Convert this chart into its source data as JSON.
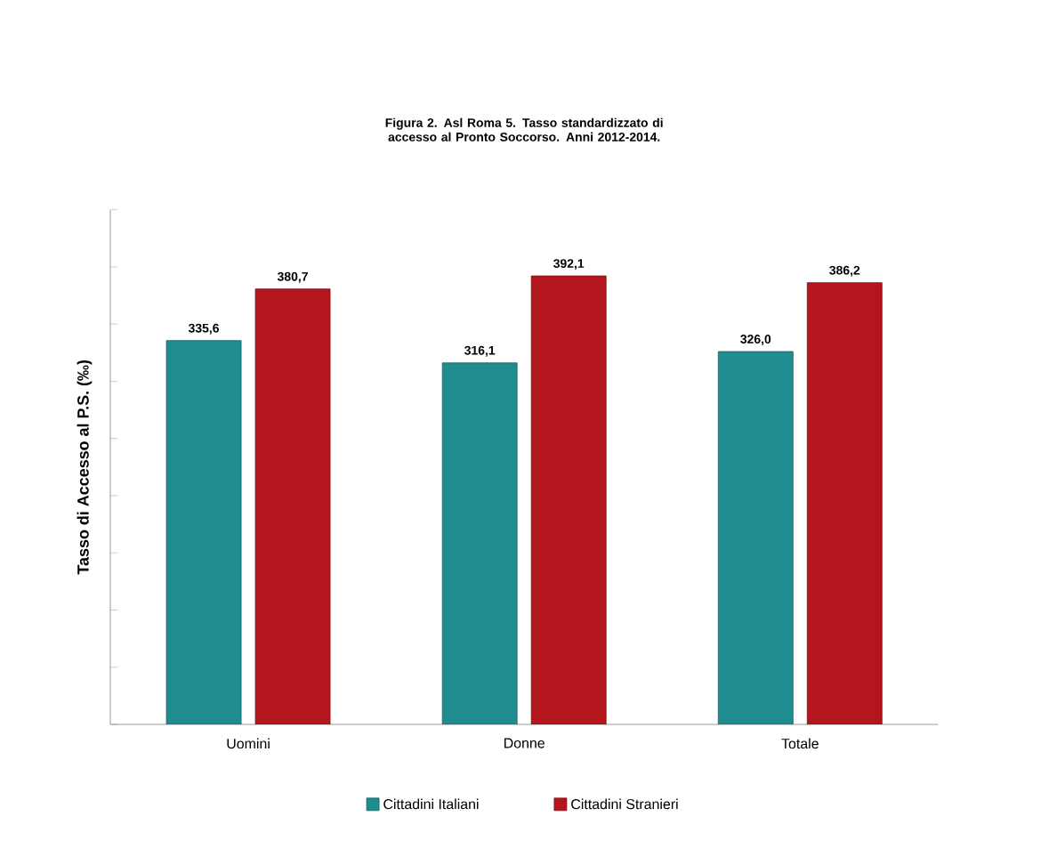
{
  "chart_data": {
    "type": "bar",
    "title": "Figura 2. Asl Roma 5. Tasso standardizzato di accesso al Pronto Soccorso. Anni 2012-2014.",
    "ylabel": "Tasso di Accesso al P.S. (‰)",
    "categories": [
      "Uomini",
      "Donne",
      "Totale"
    ],
    "series": [
      {
        "name": "Cittadini Italiani",
        "color": "#1f8c8f",
        "values": [
          335.6,
          316.1,
          326.0
        ],
        "value_labels": [
          "335,6",
          "316,1",
          "326,0"
        ]
      },
      {
        "name": "Cittadini Stranieri",
        "color": "#b3161c",
        "values": [
          380.7,
          392.1,
          386.2
        ],
        "value_labels": [
          "380,7",
          "392,1",
          "386,2"
        ]
      }
    ],
    "ylim": [
      0,
      450
    ],
    "yticks": [
      {
        "value": 0,
        "label": null
      },
      {
        "value": 50,
        "label": null
      },
      {
        "value": 100,
        "label": null
      },
      {
        "value": 150,
        "label": null
      },
      {
        "value": 200,
        "label": null
      },
      {
        "value": 250,
        "label": null
      },
      {
        "value": 300,
        "label": null
      },
      {
        "value": 350,
        "label": null
      },
      {
        "value": 400,
        "label": null
      },
      {
        "value": 450,
        "label": null
      }
    ],
    "tick_labels": "x",
    "grid": false,
    "legend": "bottom"
  }
}
